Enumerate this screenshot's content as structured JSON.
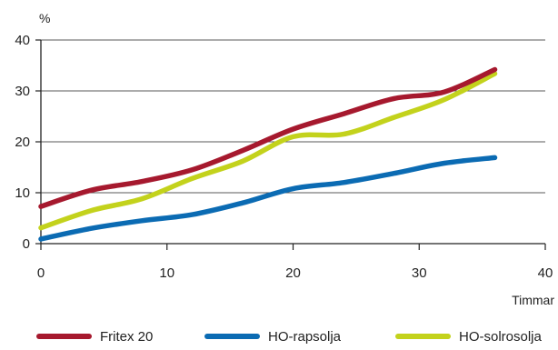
{
  "chart_data": {
    "type": "line",
    "title": "",
    "ylabel": "%",
    "xlabel": "Timmar",
    "xlim": [
      0,
      40
    ],
    "ylim": [
      0,
      40
    ],
    "x_ticks": [
      0,
      10,
      20,
      30,
      40
    ],
    "y_ticks": [
      0,
      10,
      20,
      30,
      40
    ],
    "grid": "horizontal",
    "legend_position": "bottom",
    "series": [
      {
        "name": "Fritex 20",
        "color": "#a6192e",
        "points": [
          [
            0,
            7.3
          ],
          [
            4,
            10.5
          ],
          [
            8,
            12.2
          ],
          [
            12,
            14.5
          ],
          [
            16,
            18.3
          ],
          [
            20,
            22.5
          ],
          [
            24,
            25.5
          ],
          [
            28,
            28.5
          ],
          [
            32,
            29.8
          ],
          [
            36,
            34.2
          ]
        ]
      },
      {
        "name": "HO-rapsolja",
        "color": "#0b6bb3",
        "points": [
          [
            0,
            0.9
          ],
          [
            4,
            3
          ],
          [
            8,
            4.5
          ],
          [
            12,
            5.7
          ],
          [
            16,
            8
          ],
          [
            20,
            10.8
          ],
          [
            24,
            12
          ],
          [
            28,
            13.8
          ],
          [
            32,
            15.8
          ],
          [
            36,
            16.9
          ]
        ]
      },
      {
        "name": "HO-solrosolja",
        "color": "#c3d21c",
        "points": [
          [
            0,
            3.1
          ],
          [
            4,
            6.5
          ],
          [
            8,
            8.8
          ],
          [
            12,
            12.8
          ],
          [
            16,
            16.2
          ],
          [
            20,
            21
          ],
          [
            24,
            21.5
          ],
          [
            28,
            24.8
          ],
          [
            32,
            28.3
          ],
          [
            36,
            33.4
          ]
        ]
      }
    ]
  }
}
